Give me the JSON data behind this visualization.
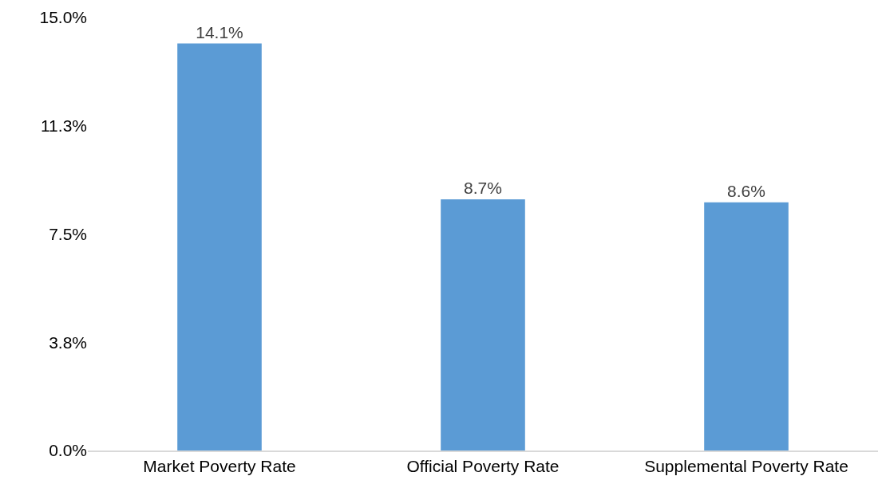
{
  "chart_data": {
    "type": "bar",
    "categories": [
      "Market Poverty Rate",
      "Official Poverty Rate",
      "Supplemental Poverty Rate"
    ],
    "values": [
      14.1,
      8.7,
      8.6
    ],
    "value_labels": [
      "14.1%",
      "8.7%",
      "8.6%"
    ],
    "color": "#5b9bd5",
    "ylim": [
      0,
      15
    ],
    "yticks": [
      {
        "value": 0,
        "label": "0.0%"
      },
      {
        "value": 3.75,
        "label": "3.8%"
      },
      {
        "value": 7.5,
        "label": "7.5%"
      },
      {
        "value": 11.25,
        "label": "11.3%"
      },
      {
        "value": 15,
        "label": "15.0%"
      }
    ],
    "orientation": "vertical"
  }
}
